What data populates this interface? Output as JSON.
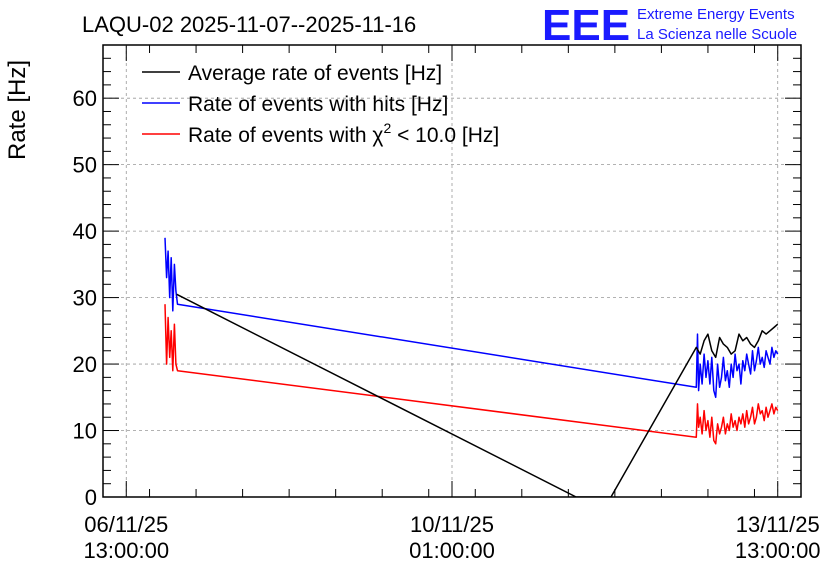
{
  "chart_data": {
    "type": "line",
    "title": "LAQU-02 2025-11-07--2025-11-16",
    "ylabel": "Rate [Hz]",
    "xlabel": "",
    "ylim": [
      0,
      68
    ],
    "xlim_hours": [
      -6,
      174
    ],
    "y_ticks": [
      0,
      10,
      20,
      30,
      40,
      50,
      60
    ],
    "x_ticks": [
      {
        "hour": 0,
        "date": "06/11/25",
        "time": "13:00:00"
      },
      {
        "hour": 84,
        "date": "10/11/25",
        "time": "01:00:00"
      },
      {
        "hour": 168,
        "date": "13/11/25",
        "time": "13:00:00"
      }
    ],
    "grid": true,
    "legend_position": "top-left",
    "series": [
      {
        "name": "Average rate of events [Hz]",
        "color": "#000000",
        "x": [
          13,
          116,
          125,
          147,
          148,
          149,
          150,
          151,
          152,
          153,
          154,
          155,
          156,
          157,
          158,
          159,
          160,
          161,
          162,
          163,
          164,
          165,
          166,
          167,
          168
        ],
        "y": [
          30.5,
          0,
          0,
          22.5,
          21.5,
          23.5,
          24.5,
          22,
          21,
          24,
          23,
          22.5,
          21.5,
          22,
          24.5,
          23.5,
          24,
          23,
          22.5,
          23.5,
          25,
          24.5,
          25,
          25.5,
          26
        ]
      },
      {
        "name": "Rate of events with hits [Hz]",
        "color": "#0000ff",
        "x": [
          10,
          10.4,
          10.8,
          11.2,
          11.6,
          12,
          12.4,
          12.8,
          13.2,
          147,
          147.3,
          147.6,
          148,
          148.5,
          149,
          149.5,
          150,
          150.5,
          151,
          151.5,
          152,
          152.5,
          153,
          153.5,
          154,
          154.5,
          155,
          155.5,
          156,
          156.5,
          157,
          157.5,
          158,
          158.5,
          159,
          159.5,
          160,
          160.5,
          161,
          161.5,
          162,
          162.5,
          163,
          163.5,
          164,
          164.5,
          165,
          165.5,
          166,
          166.5,
          167,
          167.5,
          168
        ],
        "y": [
          39,
          33,
          37,
          30,
          36,
          28,
          35,
          31,
          29,
          16.5,
          24.5,
          16,
          20,
          17,
          21.5,
          18,
          20.5,
          17,
          21,
          16,
          15,
          20,
          16.5,
          18,
          21,
          17.5,
          19,
          16.5,
          20,
          18,
          21.5,
          19,
          20,
          17,
          20.5,
          19,
          21.5,
          20,
          18.5,
          22,
          19,
          20.5,
          22.5,
          20,
          21,
          19.5,
          22,
          21,
          20,
          22.5,
          21,
          22,
          21.5
        ]
      },
      {
        "name": "Rate of events with χ² < 10.0 [Hz]",
        "color": "#ff0000",
        "x": [
          10,
          10.4,
          10.8,
          11.2,
          11.6,
          12,
          12.4,
          12.8,
          13.2,
          147,
          147.3,
          147.6,
          148,
          148.5,
          149,
          149.5,
          150,
          150.5,
          151,
          151.5,
          152,
          152.5,
          153,
          153.5,
          154,
          154.5,
          155,
          155.5,
          156,
          156.5,
          157,
          157.5,
          158,
          158.5,
          159,
          159.5,
          160,
          160.5,
          161,
          161.5,
          162,
          162.5,
          163,
          163.5,
          164,
          164.5,
          165,
          165.5,
          166,
          166.5,
          167,
          167.5,
          168
        ],
        "y": [
          29,
          20,
          27,
          21,
          25,
          19,
          26,
          20,
          19,
          9,
          14,
          10.5,
          12,
          9.5,
          13,
          10,
          11.5,
          9,
          12,
          8.5,
          8,
          11,
          9.5,
          10.5,
          12,
          9.5,
          11,
          10,
          12.5,
          10.5,
          11.5,
          10,
          12,
          11,
          12.5,
          10.5,
          13,
          11,
          12,
          13.5,
          11,
          12,
          14,
          12.5,
          13,
          11.5,
          13.5,
          12,
          13,
          14,
          12.5,
          13.5,
          13
        ]
      }
    ],
    "legend": [
      {
        "label": "Average rate of events [Hz]"
      },
      {
        "label": "Rate of events with hits [Hz]"
      },
      {
        "label_prefix": "Rate of events with χ",
        "label_sup": "2",
        "label_suffix": " < 10.0 [Hz]"
      }
    ]
  },
  "branding": {
    "logo_text": "EEE",
    "line1": "Extreme Energy Events",
    "line2": "La Scienza nelle Scuole",
    "color": "#1a1aff"
  }
}
